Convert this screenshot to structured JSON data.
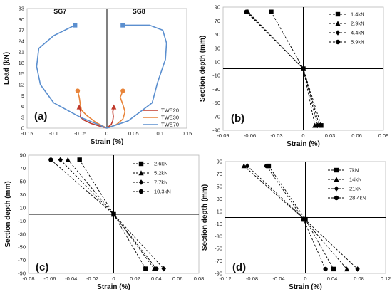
{
  "chart_data": [
    {
      "panel": "(a)",
      "type": "line",
      "xlabel": "Strain (%)",
      "ylabel": "Load (kN)",
      "xlim": [
        -0.15,
        0.15
      ],
      "ylim": [
        0,
        33
      ],
      "xticks": [
        "-0.15",
        "-0.1",
        "-0.05",
        "0",
        "0.05",
        "0.1",
        "0.15"
      ],
      "yticks": [
        "0",
        "3",
        "6",
        "9",
        "12",
        "15",
        "18",
        "21",
        "24",
        "27",
        "30",
        "33"
      ],
      "annotations": [
        "SG7",
        "SG8"
      ],
      "legend_position": "bottom-right",
      "series": [
        {
          "name": "TWE20",
          "color": "#c0392b",
          "marker_end": "triangle",
          "curves": [
            [
              [
                0,
                0
              ],
              [
                -0.015,
                0.6
              ],
              [
                -0.03,
                1.3
              ],
              [
                -0.043,
                2.2
              ],
              [
                -0.05,
                3.0
              ],
              [
                -0.049,
                4.4
              ],
              [
                -0.052,
                5.8
              ]
            ],
            [
              [
                0,
                0
              ],
              [
                0.008,
                1.0
              ],
              [
                0.011,
                2.0
              ],
              [
                0.012,
                3.2
              ],
              [
                0.011,
                4.5
              ],
              [
                0.013,
                5.8
              ]
            ]
          ]
        },
        {
          "name": "TWE30",
          "color": "#e8843a",
          "marker_end": "circle",
          "curves": [
            [
              [
                0,
                0
              ],
              [
                -0.02,
                1.5
              ],
              [
                -0.038,
                3.5
              ],
              [
                -0.048,
                5.0
              ],
              [
                -0.05,
                6.5
              ],
              [
                -0.052,
                8.5
              ],
              [
                -0.055,
                10.3
              ]
            ],
            [
              [
                0,
                0
              ],
              [
                0.018,
                1.0
              ],
              [
                0.03,
                2.5
              ],
              [
                0.034,
                4.5
              ],
              [
                0.03,
                6.5
              ],
              [
                0.025,
                8.5
              ],
              [
                0.03,
                10.3
              ]
            ]
          ]
        },
        {
          "name": "TWE70",
          "color": "#5b8fcf",
          "marker_end": "square",
          "curves": [
            [
              [
                0,
                0
              ],
              [
                -0.05,
                3.0
              ],
              [
                -0.1,
                7.0
              ],
              [
                -0.125,
                12.0
              ],
              [
                -0.132,
                17.0
              ],
              [
                -0.128,
                22.0
              ],
              [
                -0.1,
                25.5
              ],
              [
                -0.06,
                28.4
              ]
            ],
            [
              [
                0,
                0
              ],
              [
                0.04,
                2.0
              ],
              [
                0.085,
                7.0
              ],
              [
                0.095,
                12.5
              ],
              [
                0.11,
                19.0
              ],
              [
                0.112,
                23.5
              ],
              [
                0.105,
                27.0
              ],
              [
                0.08,
                28.4
              ],
              [
                0.03,
                28.4
              ]
            ]
          ]
        }
      ]
    },
    {
      "panel": "(b)",
      "type": "line",
      "xlabel": "Strain (%)",
      "ylabel": "Section depth (mm)",
      "xlim": [
        -0.09,
        0.09
      ],
      "ylim": [
        -90,
        90
      ],
      "xticks": [
        "-0.09",
        "-0.06",
        "-0.03",
        "0",
        "0.03",
        "0.06",
        "0.09"
      ],
      "yticks": [
        "90",
        "70",
        "50",
        "30",
        "10",
        "-10",
        "-30",
        "-50",
        "-70",
        "-90"
      ],
      "legend_position": "top-right",
      "series": [
        {
          "name": "1.4kN",
          "marker": "square",
          "points": [
            [
              -0.036,
              83
            ],
            [
              0,
              0
            ],
            [
              0.02,
              -83
            ]
          ]
        },
        {
          "name": "2.9kN",
          "marker": "triangle",
          "points": [
            [
              -0.062,
              83
            ],
            [
              0,
              0
            ],
            [
              0.013,
              -83
            ]
          ]
        },
        {
          "name": "4.4kN",
          "marker": "diamond",
          "points": [
            [
              -0.063,
              83
            ],
            [
              0,
              0
            ],
            [
              0.016,
              -83
            ]
          ]
        },
        {
          "name": "5.9kN",
          "marker": "circle",
          "points": [
            [
              -0.064,
              83
            ],
            [
              0,
              0
            ],
            [
              0.018,
              -83
            ]
          ]
        }
      ]
    },
    {
      "panel": "(c)",
      "type": "line",
      "xlabel": "Strain (%)",
      "ylabel": "Section depth (mm)",
      "xlim": [
        -0.08,
        0.08
      ],
      "ylim": [
        -90,
        90
      ],
      "xticks": [
        "-0.08",
        "-0.06",
        "-0.04",
        "-0.02",
        "0",
        "0.02",
        "0.04",
        "0.06",
        "0.08"
      ],
      "yticks": [
        "90",
        "70",
        "50",
        "30",
        "10",
        "-10",
        "-30",
        "-50",
        "-70",
        "-90"
      ],
      "legend_position": "top-right",
      "series": [
        {
          "name": "2.6kN",
          "marker": "square",
          "points": [
            [
              -0.032,
              83
            ],
            [
              0,
              0
            ],
            [
              0.03,
              -83
            ]
          ]
        },
        {
          "name": "5.2kN",
          "marker": "triangle",
          "points": [
            [
              -0.043,
              83
            ],
            [
              0,
              0
            ],
            [
              0.038,
              -83
            ]
          ]
        },
        {
          "name": "7.7kN",
          "marker": "diamond",
          "points": [
            [
              -0.05,
              83
            ],
            [
              0,
              0
            ],
            [
              0.047,
              -83
            ]
          ]
        },
        {
          "name": "10.3kN",
          "marker": "circle",
          "points": [
            [
              -0.059,
              83
            ],
            [
              0,
              0
            ],
            [
              0.04,
              -83
            ]
          ]
        }
      ]
    },
    {
      "panel": "(d)",
      "type": "line",
      "xlabel": "Strain (%)",
      "ylabel": "Section depth (mm)",
      "xlim": [
        -0.12,
        0.12
      ],
      "ylim": [
        -90,
        90
      ],
      "xticks": [
        "-0.12",
        "-0.08",
        "-0.04",
        "0",
        "0.04",
        "0.08",
        "0.12"
      ],
      "yticks": [
        "90",
        "70",
        "50",
        "30",
        "10",
        "-10",
        "-30",
        "-50",
        "-70",
        "-90"
      ],
      "legend_position": "top-right",
      "series": [
        {
          "name": "7kN",
          "marker": "square",
          "points": [
            [
              -0.055,
              83
            ],
            [
              0,
              -3
            ],
            [
              0.042,
              -83
            ]
          ]
        },
        {
          "name": "14kN",
          "marker": "triangle",
          "points": [
            [
              -0.092,
              83
            ],
            [
              -0.002,
              -3
            ],
            [
              0.062,
              -83
            ]
          ]
        },
        {
          "name": "21kN",
          "marker": "diamond",
          "points": [
            [
              -0.087,
              83
            ],
            [
              -0.001,
              -3
            ],
            [
              0.078,
              -83
            ]
          ]
        },
        {
          "name": "28.4kN",
          "marker": "circle",
          "points": [
            [
              -0.058,
              83
            ],
            [
              -0.003,
              -3
            ],
            [
              0.03,
              -83
            ]
          ]
        }
      ]
    }
  ]
}
